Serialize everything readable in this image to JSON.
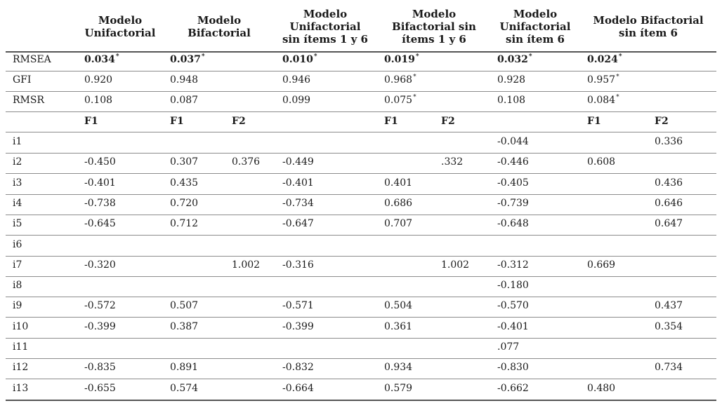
{
  "headers": [
    "Modelo\nUnifactorial",
    "Modelo\nBifactorial",
    "Modelo\nUnifactorial\nsin ítems 1 y 6",
    "Modelo\nBifactorial sin\nítems 1 y 6",
    "Modelo\nUnifactorial\nsin ítem 6",
    "Modelo Bifactorial\nsin ítem 6"
  ],
  "fit_rows": [
    {
      "label": "RMSEA",
      "bold": true,
      "values": [
        {
          "v": "0.034",
          "star": "*"
        },
        {
          "v": "0.037",
          "star": "*"
        },
        {
          "v": "0.010",
          "star": "*"
        },
        {
          "v": "0.019",
          "star": "*"
        },
        {
          "v": "0.032",
          "star": "*"
        },
        {
          "v": "0.024",
          "star": "*"
        }
      ]
    },
    {
      "label": "GFI",
      "bold": false,
      "values": [
        {
          "v": "0.920",
          "star": ""
        },
        {
          "v": "0.948",
          "star": ""
        },
        {
          "v": "0.946",
          "star": ""
        },
        {
          "v": "0.968",
          "star": "*"
        },
        {
          "v": "0.928",
          "star": ""
        },
        {
          "v": "0.957",
          "star": "*"
        }
      ]
    },
    {
      "label": "RMSR",
      "bold": false,
      "values": [
        {
          "v": "0.108",
          "star": ""
        },
        {
          "v": "0.087",
          "star": ""
        },
        {
          "v": "0.099",
          "star": ""
        },
        {
          "v": "0.075",
          "star": "*"
        },
        {
          "v": "0.108",
          "star": ""
        },
        {
          "v": "0.084",
          "star": "*"
        }
      ]
    }
  ],
  "factor_row": [
    "F1",
    "F1",
    "F2",
    "",
    "F1",
    "F2",
    "",
    "F1",
    "F2"
  ],
  "items": [
    {
      "label": "i1",
      "cells": [
        "",
        "",
        "",
        "",
        "",
        "",
        "-0.044",
        "",
        "0.336"
      ]
    },
    {
      "label": "i2",
      "cells": [
        "-0.450",
        "0.307",
        "0.376",
        "-0.449",
        "",
        ".332",
        "-0.446",
        "0.608",
        ""
      ]
    },
    {
      "label": "i3",
      "cells": [
        "-0.401",
        "0.435",
        "",
        "-0.401",
        "0.401",
        "",
        "-0.405",
        "",
        "0.436"
      ]
    },
    {
      "label": "i4",
      "cells": [
        "-0.738",
        "0.720",
        "",
        "-0.734",
        "0.686",
        "",
        "-0.739",
        "",
        "0.646"
      ]
    },
    {
      "label": "i5",
      "cells": [
        "-0.645",
        "0.712",
        "",
        "-0.647",
        "0.707",
        "",
        "-0.648",
        "",
        "0.647"
      ]
    },
    {
      "label": "i6",
      "cells": [
        "",
        "",
        "",
        "",
        "",
        "",
        "",
        "",
        ""
      ]
    },
    {
      "label": "i7",
      "cells": [
        "-0.320",
        "",
        "1.002",
        "-0.316",
        "",
        "1.002",
        "-0.312",
        "0.669",
        ""
      ]
    },
    {
      "label": "i8",
      "cells": [
        "",
        "",
        "",
        "",
        "",
        "",
        "-0.180",
        "",
        ""
      ]
    },
    {
      "label": "i9",
      "cells": [
        "-0.572",
        "0.507",
        "",
        "-0.571",
        "0.504",
        "",
        "-0.570",
        "",
        "0.437"
      ]
    },
    {
      "label": "i10",
      "cells": [
        "-0.399",
        "0.387",
        "",
        "-0.399",
        "0.361",
        "",
        "-0.401",
        "",
        "0.354"
      ]
    },
    {
      "label": "i11",
      "cells": [
        "",
        "",
        "",
        "",
        "",
        "",
        ".077",
        "",
        ""
      ]
    },
    {
      "label": "i12",
      "cells": [
        "-0.835",
        "0.891",
        "",
        "-0.832",
        "0.934",
        "",
        "-0.830",
        "",
        "0.734"
      ]
    },
    {
      "label": "i13",
      "cells": [
        "-0.655",
        "0.574",
        "",
        "-0.664",
        "0.579",
        "",
        "-0.662",
        "0.480",
        ""
      ]
    }
  ]
}
